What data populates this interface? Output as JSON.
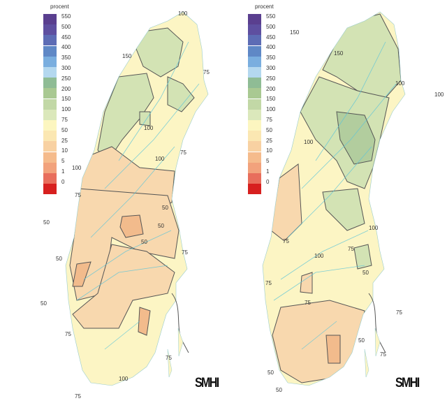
{
  "legend": {
    "title": "procent",
    "labels": [
      "550",
      "500",
      "450",
      "400",
      "350",
      "300",
      "250",
      "200",
      "150",
      "100",
      "75",
      "50",
      "25",
      "10",
      "5",
      "1",
      "0"
    ],
    "colors": [
      "#5a3f8f",
      "#5e4fa0",
      "#5d6cb5",
      "#5f88c6",
      "#7aaedf",
      "#b4d8ef",
      "#8fbc95",
      "#a9c992",
      "#c2d8a6",
      "#dbe8bb",
      "#fcf6c0",
      "#fbe7b2",
      "#f8d1a2",
      "#f5bb8c",
      "#f2a27c",
      "#e86e5c",
      "#d7201f"
    ]
  },
  "maps": [
    {
      "contour_labels": [
        "100",
        "150",
        "75",
        "100",
        "75",
        "100",
        "100",
        "75",
        "50",
        "50",
        "50",
        "50",
        "75",
        "50",
        "50",
        "75",
        "75",
        "100",
        "75"
      ],
      "logo": "SMHI"
    },
    {
      "contour_labels": [
        "150",
        "150",
        "100",
        "100",
        "100",
        "100",
        "75",
        "75",
        "100",
        "50",
        "75",
        "75",
        "75",
        "50",
        "75",
        "50",
        "50"
      ],
      "logo": "SMHI"
    }
  ],
  "colors": {
    "pale_yellow": "#fcf5c4",
    "light_orange": "#f8d8ae",
    "orange": "#f2bb8c",
    "light_green": "#d3e3b4",
    "green": "#b2cd9e",
    "water": "#5cc4d8"
  }
}
